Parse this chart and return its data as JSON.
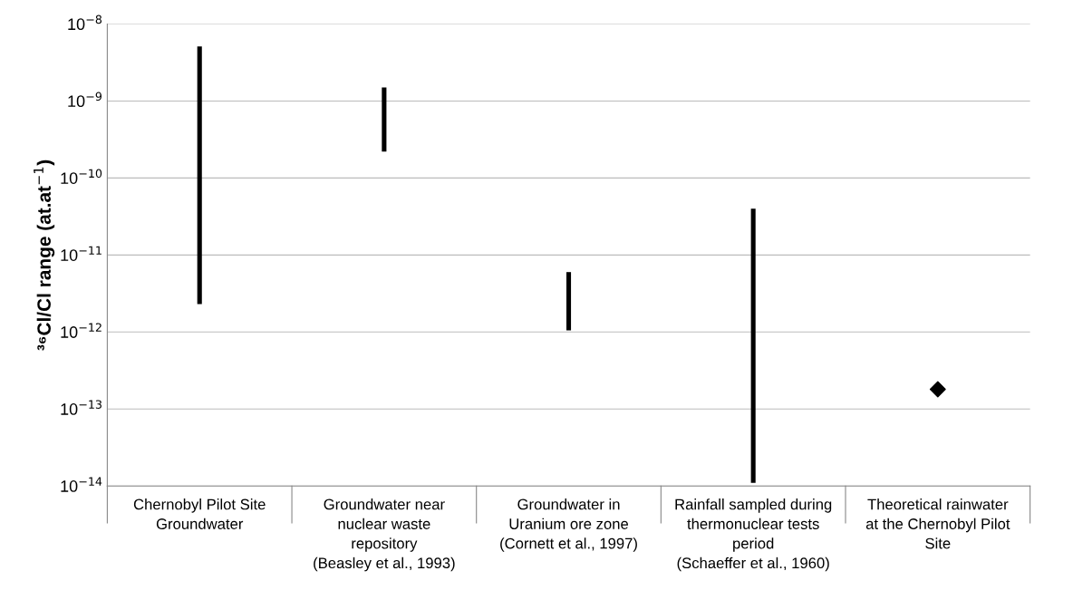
{
  "chart_data": {
    "type": "bar",
    "ylabel": "³⁶Cl/Cl range (at.at$^{−1}$)",
    "categories": [
      "Chernobyl Pilot Site\nGroundwater",
      "Groundwater near\nnuclear waste\nrepository\n(Beasley et al., 1993)",
      "Groundwater in\nUranium ore zone\n(Cornett et al., 1997)",
      "Rainfall sampled during\nthermonuclear tests\nperiod\n(Schaeffer et al., 1960)",
      "Theoretical rainwater\nat the Chernobyl Pilot\nSite"
    ],
    "series": [
      {
        "color": "#000000",
        "base": [
          2.3e-12,
          2.2e-10,
          1.05e-12,
          1.1e-14,
          null
        ],
        "values": [
          5.0977e-09,
          1.28e-09,
          4.95e-12,
          3.9989e-11,
          null
        ]
      },
      {
        "type": "scatter",
        "color": "#000000",
        "marker": "diamond",
        "values": [
          null,
          null,
          null,
          null,
          1.8e-13
        ]
      }
    ],
    "log": "y",
    "ylim": [
      1e-14,
      1e-08
    ],
    "yticks": [
      {
        "value": 1e-14,
        "label": "10$^{−14}$"
      },
      {
        "value": 1e-13,
        "label": "10$^{−13}$"
      },
      {
        "value": 1e-12,
        "label": "10$^{−12}$"
      },
      {
        "value": 1e-11,
        "label": "10$^{−11}$"
      },
      {
        "value": 1e-10,
        "label": "10$^{−10}$"
      },
      {
        "value": 1e-09,
        "label": "10$^{−9}$"
      },
      {
        "value": 1e-08,
        "label": "10$^{−8}$"
      }
    ],
    "grid": "y"
  }
}
